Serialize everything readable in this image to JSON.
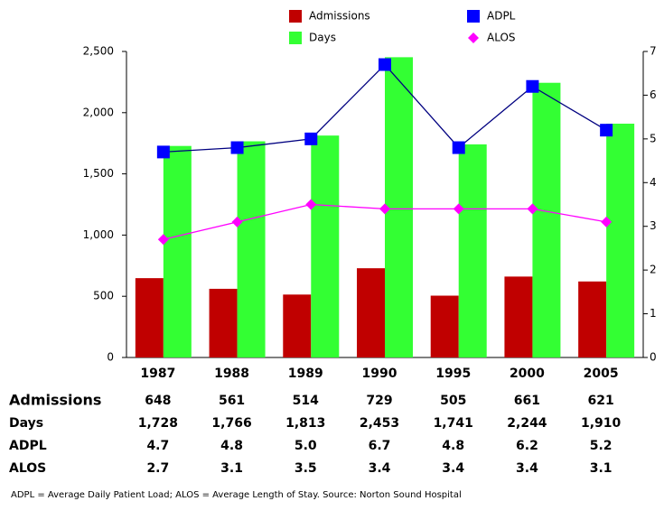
{
  "chart_data": {
    "type": "bar",
    "categories": [
      "1987",
      "1988",
      "1989",
      "1990",
      "1995",
      "2000",
      "2005"
    ],
    "series": [
      {
        "name": "Admissions",
        "type": "bar",
        "color": "#c00000",
        "values": [
          648,
          561,
          514,
          729,
          505,
          661,
          621
        ]
      },
      {
        "name": "Days",
        "type": "bar",
        "color": "#33ff33",
        "values": [
          1728,
          1766,
          1813,
          2453,
          1741,
          2244,
          1910
        ],
        "value_labels": [
          "1,728",
          "1,766",
          "1,813",
          "2,453",
          "1,741",
          "2,244",
          "1,910"
        ]
      },
      {
        "name": "ADPL",
        "type": "line",
        "axis": "y2",
        "color": "#0000ff",
        "line_color": "#000080",
        "marker": "square",
        "values": [
          4.7,
          4.8,
          5.0,
          6.7,
          4.8,
          6.2,
          5.2
        ],
        "value_labels": [
          "4.7",
          "4.8",
          "5.0",
          "6.7",
          "4.8",
          "6.2",
          "5.2"
        ]
      },
      {
        "name": "ALOS",
        "type": "line",
        "axis": "y2",
        "color": "#ff00ff",
        "line_color": "#ff00ff",
        "marker": "diamond",
        "values": [
          2.7,
          3.1,
          3.5,
          3.4,
          3.4,
          3.4,
          3.1
        ]
      }
    ],
    "ylim": [
      0,
      2500
    ],
    "yticks": [
      0,
      500,
      {
        "value": 1000,
        "label": "1,000"
      },
      {
        "value": 1500,
        "label": "1,500"
      },
      {
        "value": 2000,
        "label": "2,000"
      },
      {
        "value": 2500,
        "label": "2,500"
      }
    ],
    "y2lim": [
      0,
      7
    ],
    "y2ticks": [
      0,
      1,
      2,
      3,
      4,
      5,
      6,
      7
    ],
    "grid": false,
    "legend": "top",
    "footnote": "ADPL = Average Daily Patient Load; ALOS = Average Length of Stay. Source: Norton Sound Hospital"
  }
}
